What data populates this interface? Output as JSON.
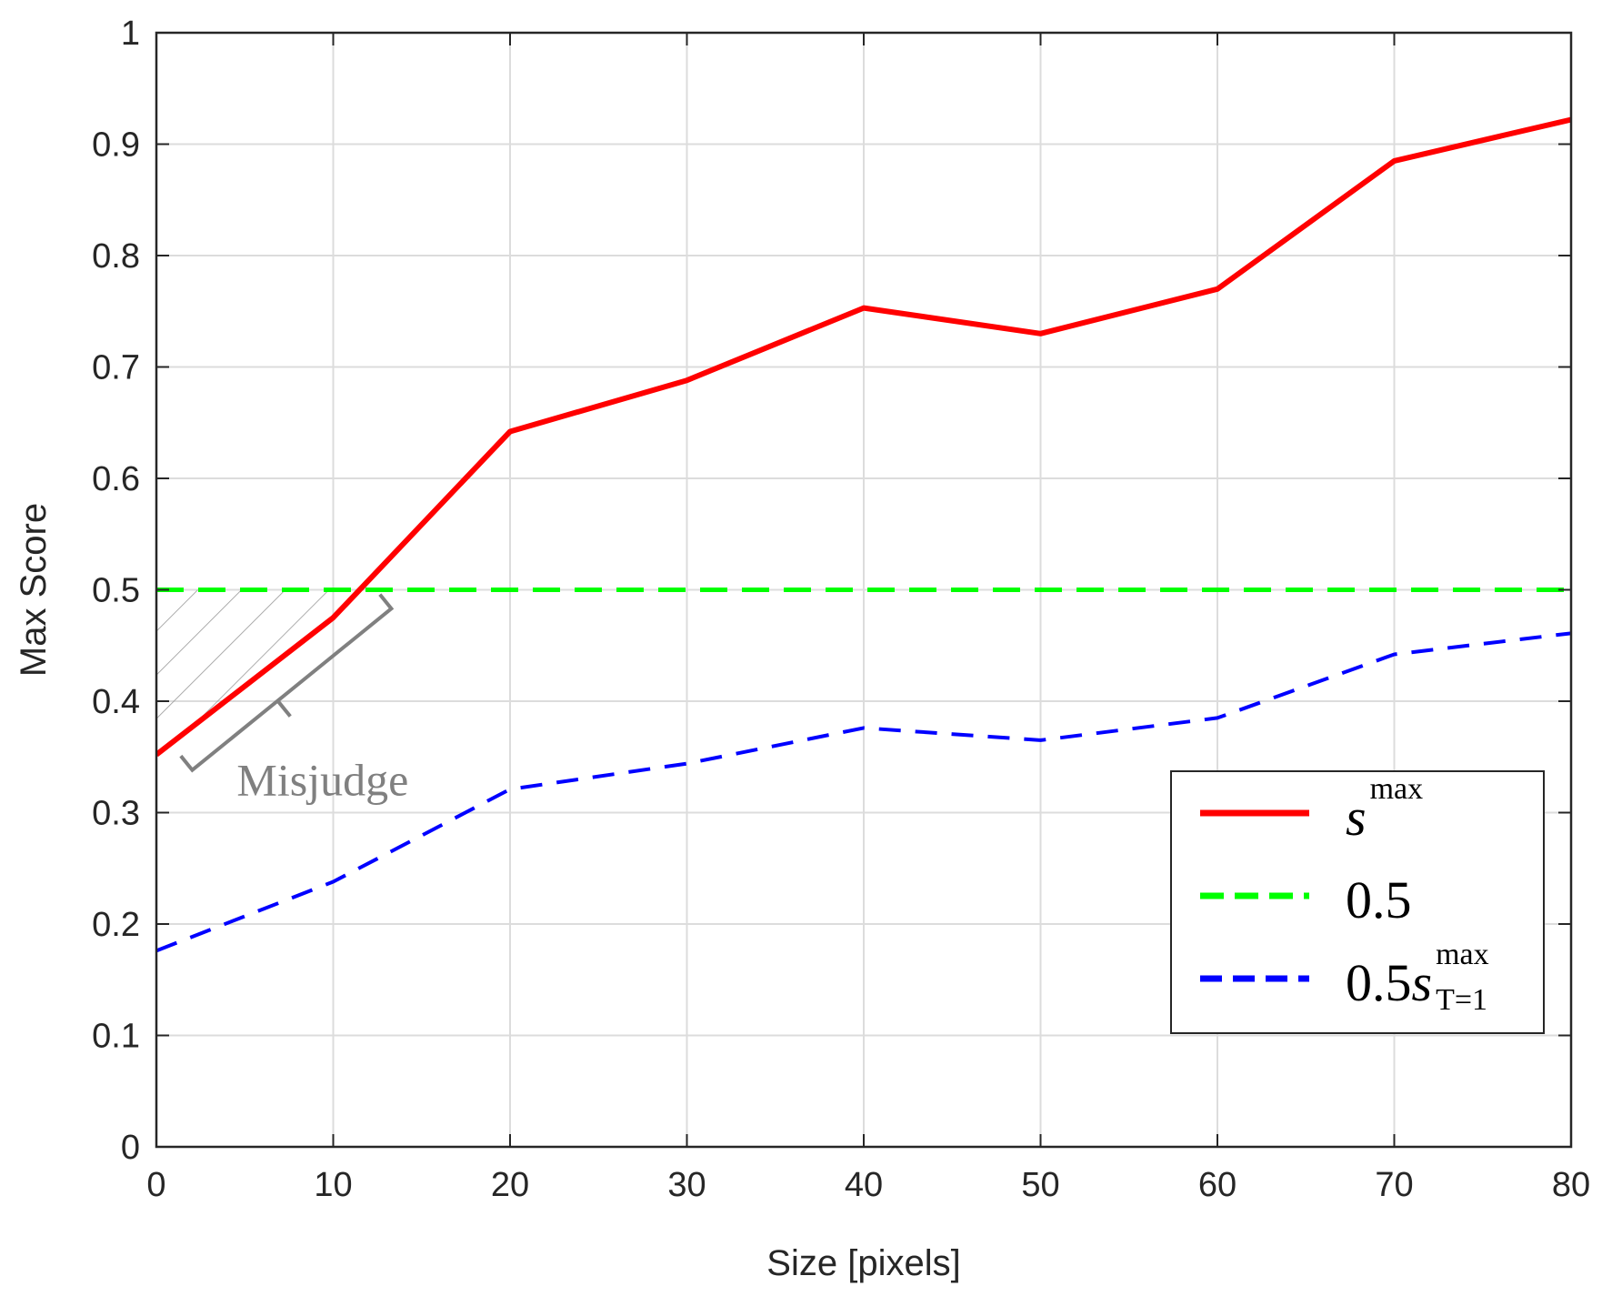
{
  "chart_data": {
    "type": "line",
    "xlabel": "Size [pixels]",
    "ylabel": "Max Score",
    "xlim": [
      0,
      80
    ],
    "ylim": [
      0,
      1
    ],
    "x_ticks": [
      "0",
      "10",
      "20",
      "30",
      "40",
      "50",
      "60",
      "70",
      "80"
    ],
    "y_ticks": [
      "0",
      "0.1",
      "0.2",
      "0.3",
      "0.4",
      "0.5",
      "0.6",
      "0.7",
      "0.8",
      "0.9",
      "1"
    ],
    "grid": true,
    "legend_position": "bottom-right",
    "series": [
      {
        "name": "s^max",
        "legend_base": "s",
        "legend_sup": "max",
        "style": "solid",
        "color": "#ff0000",
        "x": [
          0,
          10,
          20,
          30,
          40,
          50,
          60,
          70,
          80
        ],
        "y": [
          0.352,
          0.475,
          0.642,
          0.688,
          0.753,
          0.73,
          0.77,
          0.885,
          0.922
        ]
      },
      {
        "name": "0.5",
        "legend_base": "0.5",
        "style": "dashed",
        "color": "#00ff00",
        "x": [
          0,
          80
        ],
        "y": [
          0.5,
          0.5
        ]
      },
      {
        "name": "0.5s^max_T=1",
        "legend_base": "0.5s",
        "legend_sup": "max",
        "legend_sub": "T=1",
        "style": "dashed",
        "color": "#0000ff",
        "x": [
          0,
          10,
          20,
          30,
          40,
          50,
          60,
          70,
          80
        ],
        "y": [
          0.176,
          0.238,
          0.321,
          0.344,
          0.376,
          0.365,
          0.385,
          0.442,
          0.461
        ]
      }
    ],
    "annotations": [
      {
        "text": "Misjudge",
        "region_x": [
          0,
          11.4
        ],
        "between": "0.5 threshold and s^max"
      }
    ]
  }
}
